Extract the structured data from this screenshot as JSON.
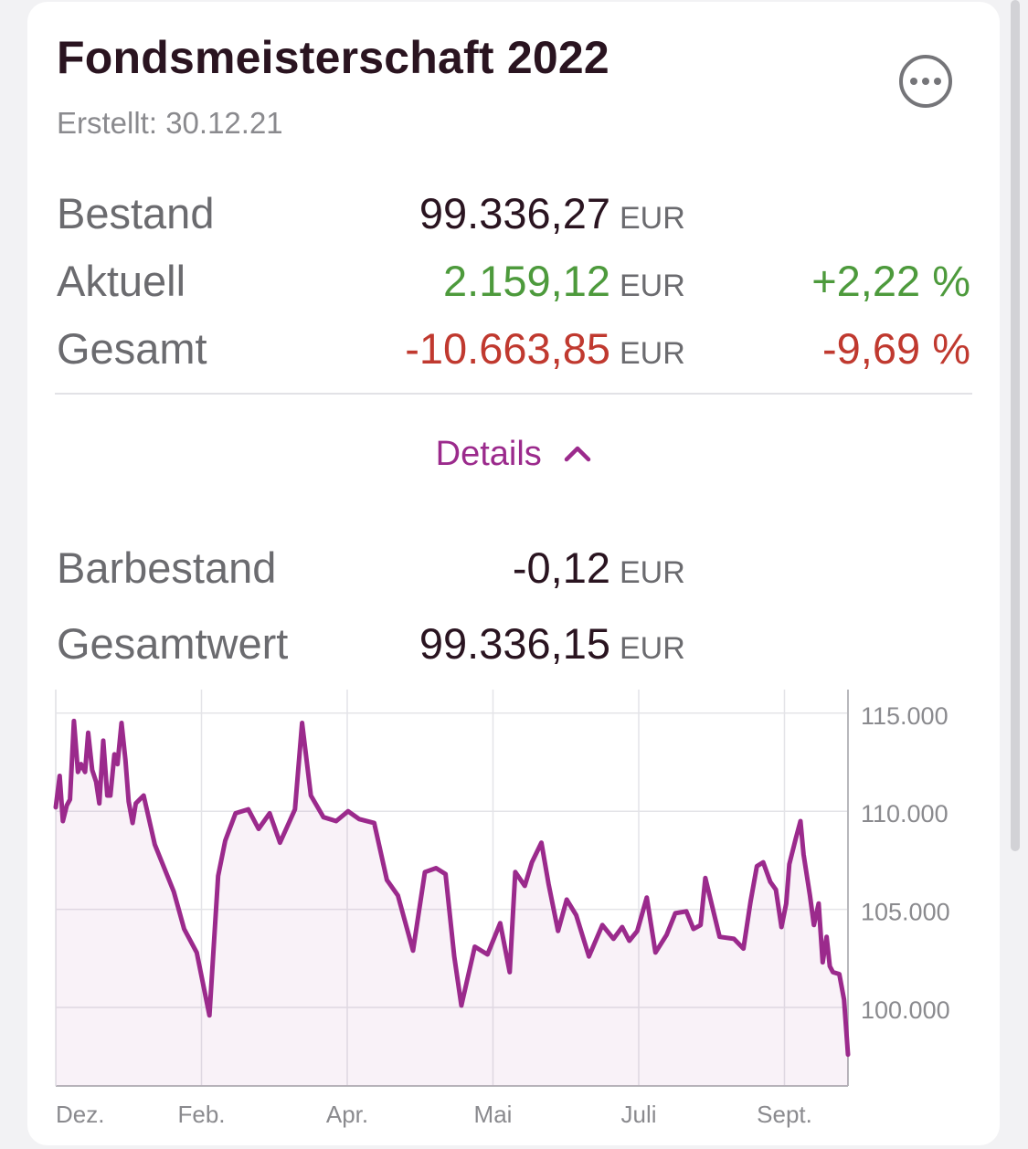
{
  "header": {
    "title": "Fondsmeisterschaft 2022",
    "subtitle": "Erstellt: 30.12.21"
  },
  "icons": {
    "more": "more-horizontal-icon",
    "details_chevron": "chevron-up-icon"
  },
  "colors": {
    "accent": "#9b2a8c",
    "positive": "#4d9a3c",
    "negative": "#c0392f"
  },
  "summary": [
    {
      "label": "Bestand",
      "amount": "99.336,27",
      "currency": "EUR",
      "percent": ""
    },
    {
      "label": "Aktuell",
      "amount": "2.159,12",
      "currency": "EUR",
      "percent": "+2,22 %",
      "status": "positive"
    },
    {
      "label": "Gesamt",
      "amount": "-10.663,85",
      "currency": "EUR",
      "percent": "-9,69 %",
      "status": "negative"
    }
  ],
  "details": {
    "label": "Details"
  },
  "cash": [
    {
      "label": "Barbestand",
      "amount": "-0,12",
      "currency": "EUR"
    },
    {
      "label": "Gesamtwert",
      "amount": "99.336,15",
      "currency": "EUR"
    }
  ],
  "chart_data": {
    "type": "area",
    "xlabel": "",
    "ylabel": "",
    "grid": true,
    "x_tick_labels": [
      "Dez.",
      "Feb.",
      "Apr.",
      "Mai",
      "Juli",
      "Sept."
    ],
    "y_tick_labels": [
      "115.000",
      "110.000",
      "105.000",
      "100.000"
    ],
    "y_ticks": [
      115000,
      110000,
      105000,
      100000
    ],
    "ylim": [
      96000,
      116200
    ],
    "color": "#9b2a8c",
    "series": [
      {
        "values": [
          110200,
          111800,
          109500,
          110300,
          110600,
          114600,
          112000,
          112400,
          112000,
          114000,
          112100,
          111500,
          110400,
          113600,
          110800,
          110800,
          112900,
          112400,
          114500,
          112600,
          110500,
          109400,
          110400,
          110600,
          110800,
          108300,
          105900,
          104000,
          102800,
          99600,
          106700,
          108500,
          109900,
          110100,
          109100,
          109900,
          108400,
          110100,
          114500,
          110800,
          109700,
          109500,
          110000,
          109600,
          109400,
          106500,
          105700,
          102900,
          106900,
          107100,
          106800,
          102600,
          100100,
          103100,
          102700,
          104300,
          101800,
          106900,
          106200,
          107400,
          108400,
          106300,
          103900,
          105500,
          104700,
          102600,
          104200,
          103500,
          104100,
          103400,
          103900,
          105600,
          102800,
          103700,
          104800,
          104900,
          104000,
          104200,
          106600,
          103600,
          103500,
          103000,
          105400,
          107200,
          107400,
          106400,
          106000,
          104100,
          105300,
          107300,
          108600,
          109500,
          107800,
          105700,
          104200,
          105300,
          102300,
          103600,
          102100,
          101800,
          101700,
          100400,
          97600
        ],
        "x": [
          0,
          0.005,
          0.009,
          0.014,
          0.018,
          0.023,
          0.028,
          0.032,
          0.037,
          0.041,
          0.046,
          0.051,
          0.055,
          0.06,
          0.065,
          0.069,
          0.074,
          0.078,
          0.083,
          0.088,
          0.092,
          0.097,
          0.101,
          0.106,
          0.111,
          0.125,
          0.149,
          0.162,
          0.178,
          0.194,
          0.205,
          0.214,
          0.227,
          0.243,
          0.256,
          0.27,
          0.283,
          0.302,
          0.311,
          0.322,
          0.338,
          0.354,
          0.369,
          0.383,
          0.402,
          0.418,
          0.432,
          0.451,
          0.466,
          0.48,
          0.492,
          0.503,
          0.512,
          0.529,
          0.545,
          0.561,
          0.573,
          0.58,
          0.592,
          0.601,
          0.613,
          0.622,
          0.634,
          0.645,
          0.657,
          0.673,
          0.69,
          0.704,
          0.715,
          0.724,
          0.734,
          0.746,
          0.757,
          0.771,
          0.782,
          0.796,
          0.805,
          0.814,
          0.82,
          0.838,
          0.856,
          0.868,
          0.877,
          0.885,
          0.893,
          0.902,
          0.909,
          0.916,
          0.922,
          0.926,
          0.934,
          0.94,
          0.944,
          0.952,
          0.957,
          0.963,
          0.968,
          0.973,
          0.977,
          0.981,
          0.989,
          0.995,
          1
        ]
      }
    ]
  }
}
